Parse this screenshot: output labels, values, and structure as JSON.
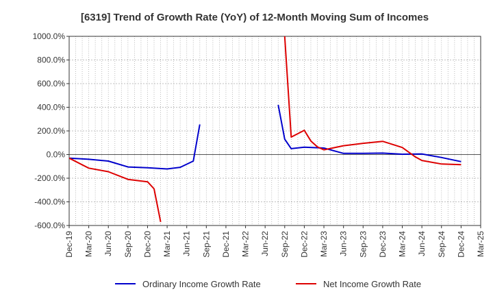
{
  "chart_data": {
    "type": "line",
    "title": "[6319]  Trend of Growth Rate (YoY) of 12-Month Moving Sum of Incomes",
    "xlabel": "",
    "ylabel": "",
    "ylim": [
      -600,
      1000
    ],
    "yticks": [
      "1000.0%",
      "800.0%",
      "600.0%",
      "400.0%",
      "200.0%",
      "0.0%",
      "-200.0%",
      "-400.0%",
      "-600.0%"
    ],
    "ytick_values": [
      1000,
      800,
      600,
      400,
      200,
      0,
      -200,
      -400,
      -600
    ],
    "xticks": [
      "Dec-19",
      "Mar-20",
      "Jun-20",
      "Sep-20",
      "Dec-20",
      "Mar-21",
      "Jun-21",
      "Sep-21",
      "Dec-21",
      "Mar-22",
      "Jun-22",
      "Sep-22",
      "Dec-22",
      "Mar-23",
      "Jun-23",
      "Sep-23",
      "Dec-23",
      "Mar-24",
      "Jun-24",
      "Sep-24",
      "Dec-24",
      "Mar-25"
    ],
    "grid": true,
    "legend_position": "bottom",
    "series": [
      {
        "name": "Ordinary Income Growth Rate",
        "color": "#0000cc",
        "points": [
          [
            "2019-12",
            -30
          ],
          [
            "2020-03",
            -40
          ],
          [
            "2020-06",
            -55
          ],
          [
            "2020-09",
            -105
          ],
          [
            "2020-12",
            -112
          ],
          [
            "2021-03",
            -122
          ],
          [
            "2021-05",
            -108
          ],
          [
            "2021-07",
            -55
          ],
          [
            "2021-08",
            255
          ],
          null,
          [
            "2022-08",
            420
          ],
          [
            "2022-09",
            130
          ],
          [
            "2022-10",
            50
          ],
          [
            "2022-12",
            62
          ],
          [
            "2023-03",
            55
          ],
          [
            "2023-06",
            10
          ],
          [
            "2023-09",
            10
          ],
          [
            "2023-12",
            12
          ],
          [
            "2024-03",
            3
          ],
          [
            "2024-06",
            5
          ],
          [
            "2024-09",
            -25
          ],
          [
            "2024-12",
            -60
          ]
        ]
      },
      {
        "name": "Net Income Growth Rate",
        "color": "#dd0000",
        "points": [
          [
            "2019-12",
            -30
          ],
          [
            "2020-03",
            -115
          ],
          [
            "2020-06",
            -145
          ],
          [
            "2020-09",
            -210
          ],
          [
            "2020-12",
            -230
          ],
          [
            "2021-01",
            -290
          ],
          [
            "2021-02",
            -570
          ],
          null,
          [
            "2022-09",
            1000
          ],
          [
            "2022-10",
            148
          ],
          [
            "2022-12",
            205
          ],
          [
            "2023-01",
            115
          ],
          [
            "2023-02",
            65
          ],
          [
            "2023-03",
            40
          ],
          [
            "2023-06",
            75
          ],
          [
            "2023-09",
            95
          ],
          [
            "2023-12",
            112
          ],
          [
            "2024-03",
            60
          ],
          [
            "2024-05",
            -20
          ],
          [
            "2024-06",
            -50
          ],
          [
            "2024-09",
            -80
          ],
          [
            "2024-12",
            -85
          ]
        ]
      }
    ]
  }
}
